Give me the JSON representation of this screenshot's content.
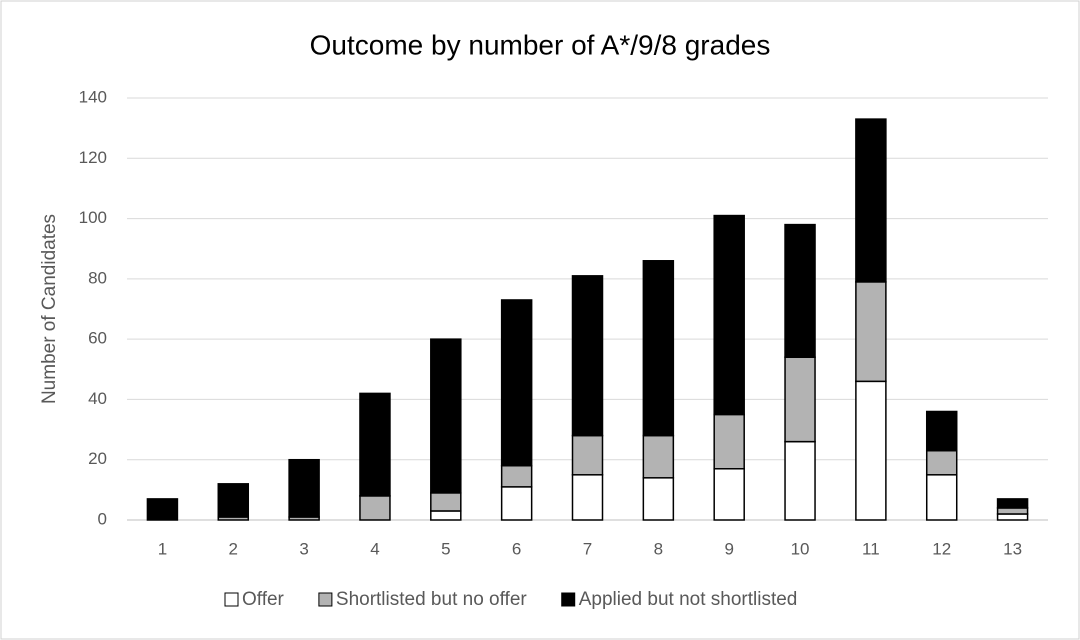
{
  "chart_data": {
    "type": "stacked_bar",
    "title": "Outcome by number of A*/9/8 grades",
    "y_label": "Number of Candidates",
    "categories": [
      "1",
      "2",
      "3",
      "4",
      "5",
      "6",
      "7",
      "8",
      "9",
      "10",
      "11",
      "12",
      "13"
    ],
    "series": [
      {
        "name": "Offer",
        "color": "#ffffff",
        "values": [
          0,
          0,
          0,
          0,
          3,
          11,
          15,
          14,
          17,
          26,
          46,
          15,
          2
        ]
      },
      {
        "name": "Shortlisted but no offer",
        "color": "#b3b3b3",
        "values": [
          0,
          1,
          1,
          8,
          6,
          7,
          13,
          14,
          18,
          28,
          33,
          8,
          2
        ]
      },
      {
        "name": "Applied but not shortlisted",
        "color": "#000000",
        "values": [
          7,
          11,
          19,
          34,
          51,
          55,
          53,
          58,
          66,
          44,
          54,
          13,
          3
        ]
      }
    ],
    "ylim": [
      0,
      140
    ],
    "yticks": [
      0,
      20,
      40,
      60,
      80,
      100,
      120,
      140
    ],
    "grid": true,
    "legend": "bottom"
  }
}
